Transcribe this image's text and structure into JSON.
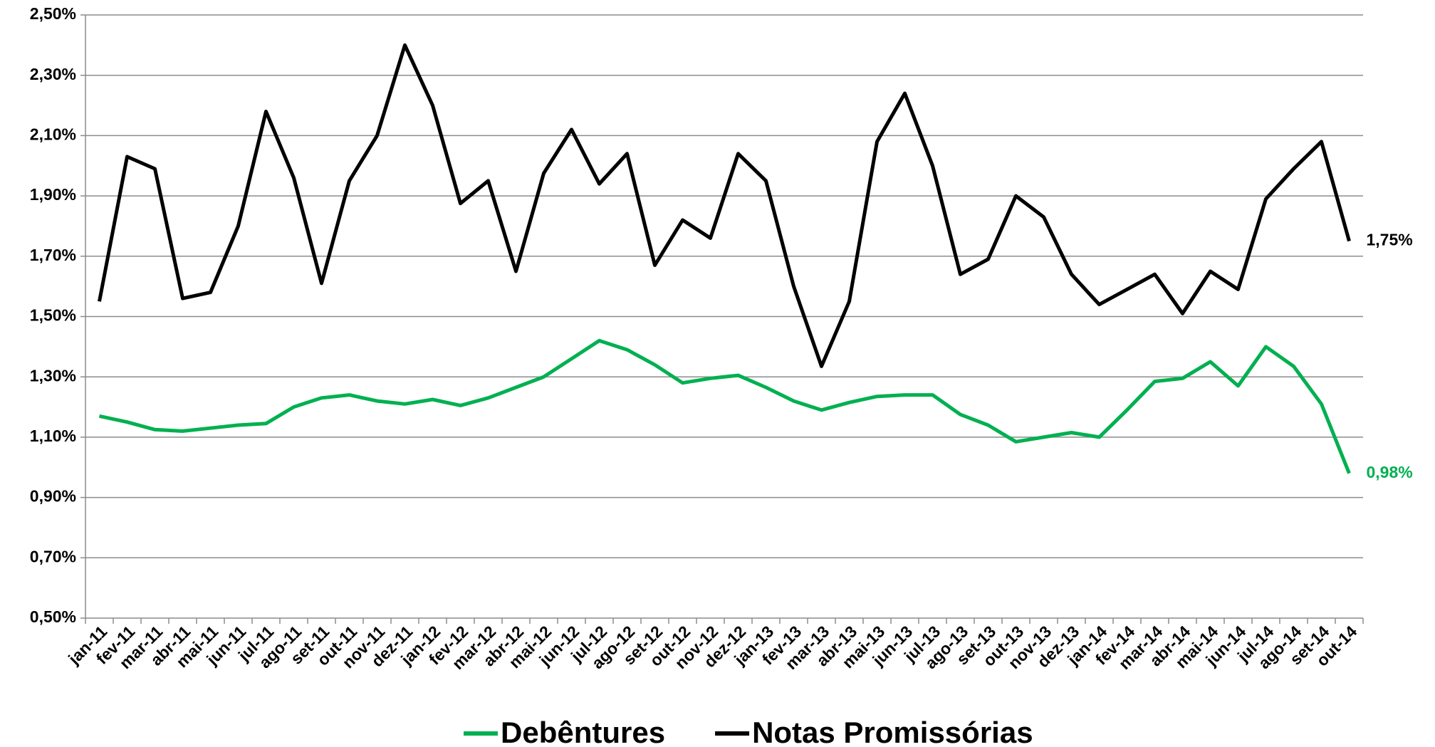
{
  "chart_data": {
    "type": "line",
    "categories": [
      "jan-11",
      "fev-11",
      "mar-11",
      "abr-11",
      "mai-11",
      "jun-11",
      "jul-11",
      "ago-11",
      "set-11",
      "out-11",
      "nov-11",
      "dez-11",
      "jan-12",
      "fev-12",
      "mar-12",
      "abr-12",
      "mai-12",
      "jun-12",
      "jul-12",
      "ago-12",
      "set-12",
      "out-12",
      "nov-12",
      "dez-12",
      "jan-13",
      "fev-13",
      "mar-13",
      "abr-13",
      "mai-13",
      "jun-13",
      "jul-13",
      "ago-13",
      "set-13",
      "out-13",
      "nov-13",
      "dez-13",
      "jan-14",
      "fev-14",
      "mar-14",
      "abr-14",
      "mai-14",
      "jun-14",
      "jul-14",
      "ago-14",
      "set-14",
      "out-14"
    ],
    "series": [
      {
        "name": "Debêntures",
        "color": "#00b050",
        "values": [
          1.17,
          1.15,
          1.125,
          1.12,
          1.13,
          1.14,
          1.145,
          1.2,
          1.23,
          1.24,
          1.22,
          1.21,
          1.225,
          1.205,
          1.23,
          1.265,
          1.3,
          1.36,
          1.42,
          1.39,
          1.34,
          1.28,
          1.295,
          1.305,
          1.265,
          1.22,
          1.19,
          1.215,
          1.235,
          1.24,
          1.24,
          1.175,
          1.14,
          1.085,
          1.1,
          1.115,
          1.1,
          1.19,
          1.285,
          1.295,
          1.35,
          1.27,
          1.4,
          1.335,
          1.21,
          0.98
        ],
        "value_labels": [
          null,
          null,
          null,
          null,
          null,
          null,
          null,
          null,
          null,
          null,
          null,
          null,
          null,
          null,
          null,
          null,
          null,
          null,
          null,
          null,
          null,
          null,
          null,
          null,
          null,
          null,
          null,
          null,
          null,
          null,
          null,
          null,
          null,
          null,
          null,
          null,
          null,
          null,
          null,
          null,
          null,
          null,
          null,
          null,
          null,
          "0,98%"
        ]
      },
      {
        "name": "Notas Promissórias",
        "color": "#000000",
        "values": [
          1.55,
          2.03,
          1.99,
          1.56,
          1.58,
          1.8,
          2.18,
          1.96,
          1.61,
          1.95,
          2.1,
          2.4,
          2.2,
          1.875,
          1.95,
          1.65,
          1.975,
          2.12,
          1.94,
          2.04,
          1.67,
          1.82,
          1.76,
          2.04,
          1.95,
          1.6,
          1.335,
          1.55,
          2.08,
          2.24,
          2.0,
          1.64,
          1.69,
          1.9,
          1.83,
          1.64,
          1.54,
          1.59,
          1.64,
          1.51,
          1.65,
          1.59,
          1.89,
          1.99,
          2.08,
          1.75
        ],
        "value_labels": [
          null,
          null,
          null,
          null,
          null,
          null,
          null,
          null,
          null,
          null,
          null,
          null,
          null,
          null,
          null,
          null,
          null,
          null,
          null,
          null,
          null,
          null,
          null,
          null,
          null,
          null,
          null,
          null,
          null,
          null,
          null,
          null,
          null,
          null,
          null,
          null,
          null,
          null,
          null,
          null,
          null,
          null,
          null,
          null,
          null,
          "1,75%"
        ]
      }
    ],
    "ylim": [
      0.5,
      2.5
    ],
    "yticks": [
      {
        "value": 0.5,
        "label": "0,50%"
      },
      {
        "value": 0.7,
        "label": "0,70%"
      },
      {
        "value": 0.9,
        "label": "0,90%"
      },
      {
        "value": 1.1,
        "label": "1,10%"
      },
      {
        "value": 1.3,
        "label": "1,30%"
      },
      {
        "value": 1.5,
        "label": "1,50%"
      },
      {
        "value": 1.7,
        "label": "1,70%"
      },
      {
        "value": 1.9,
        "label": "1,90%"
      },
      {
        "value": 2.1,
        "label": "2,10%"
      },
      {
        "value": 2.3,
        "label": "2,30%"
      },
      {
        "value": 2.5,
        "label": "2,50%"
      }
    ],
    "grid": true,
    "legend": "bottom"
  }
}
